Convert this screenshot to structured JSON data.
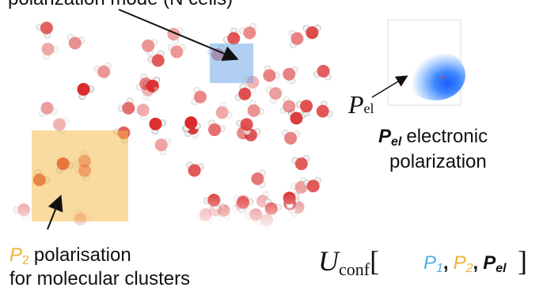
{
  "top_label": "polarization mode (N cells)",
  "pel_symbol": {
    "symbol": "P",
    "subscript": "el"
  },
  "pel_caption": {
    "symbol": "P",
    "subscript": "el",
    "line1": "electronic",
    "line2": "polarization"
  },
  "p2_caption": {
    "symbol": "P",
    "subscript": "2",
    "line1": "polarisation",
    "line2": "for molecular clusters"
  },
  "energy": {
    "symbol": "U",
    "subscript": "conf",
    "open": "[",
    "close": "]",
    "separator": ",",
    "terms": [
      {
        "symbol": "P",
        "subscript": "1"
      },
      {
        "symbol": "P",
        "subscript": "2"
      },
      {
        "symbol": "P",
        "subscript": "el"
      }
    ]
  }
}
